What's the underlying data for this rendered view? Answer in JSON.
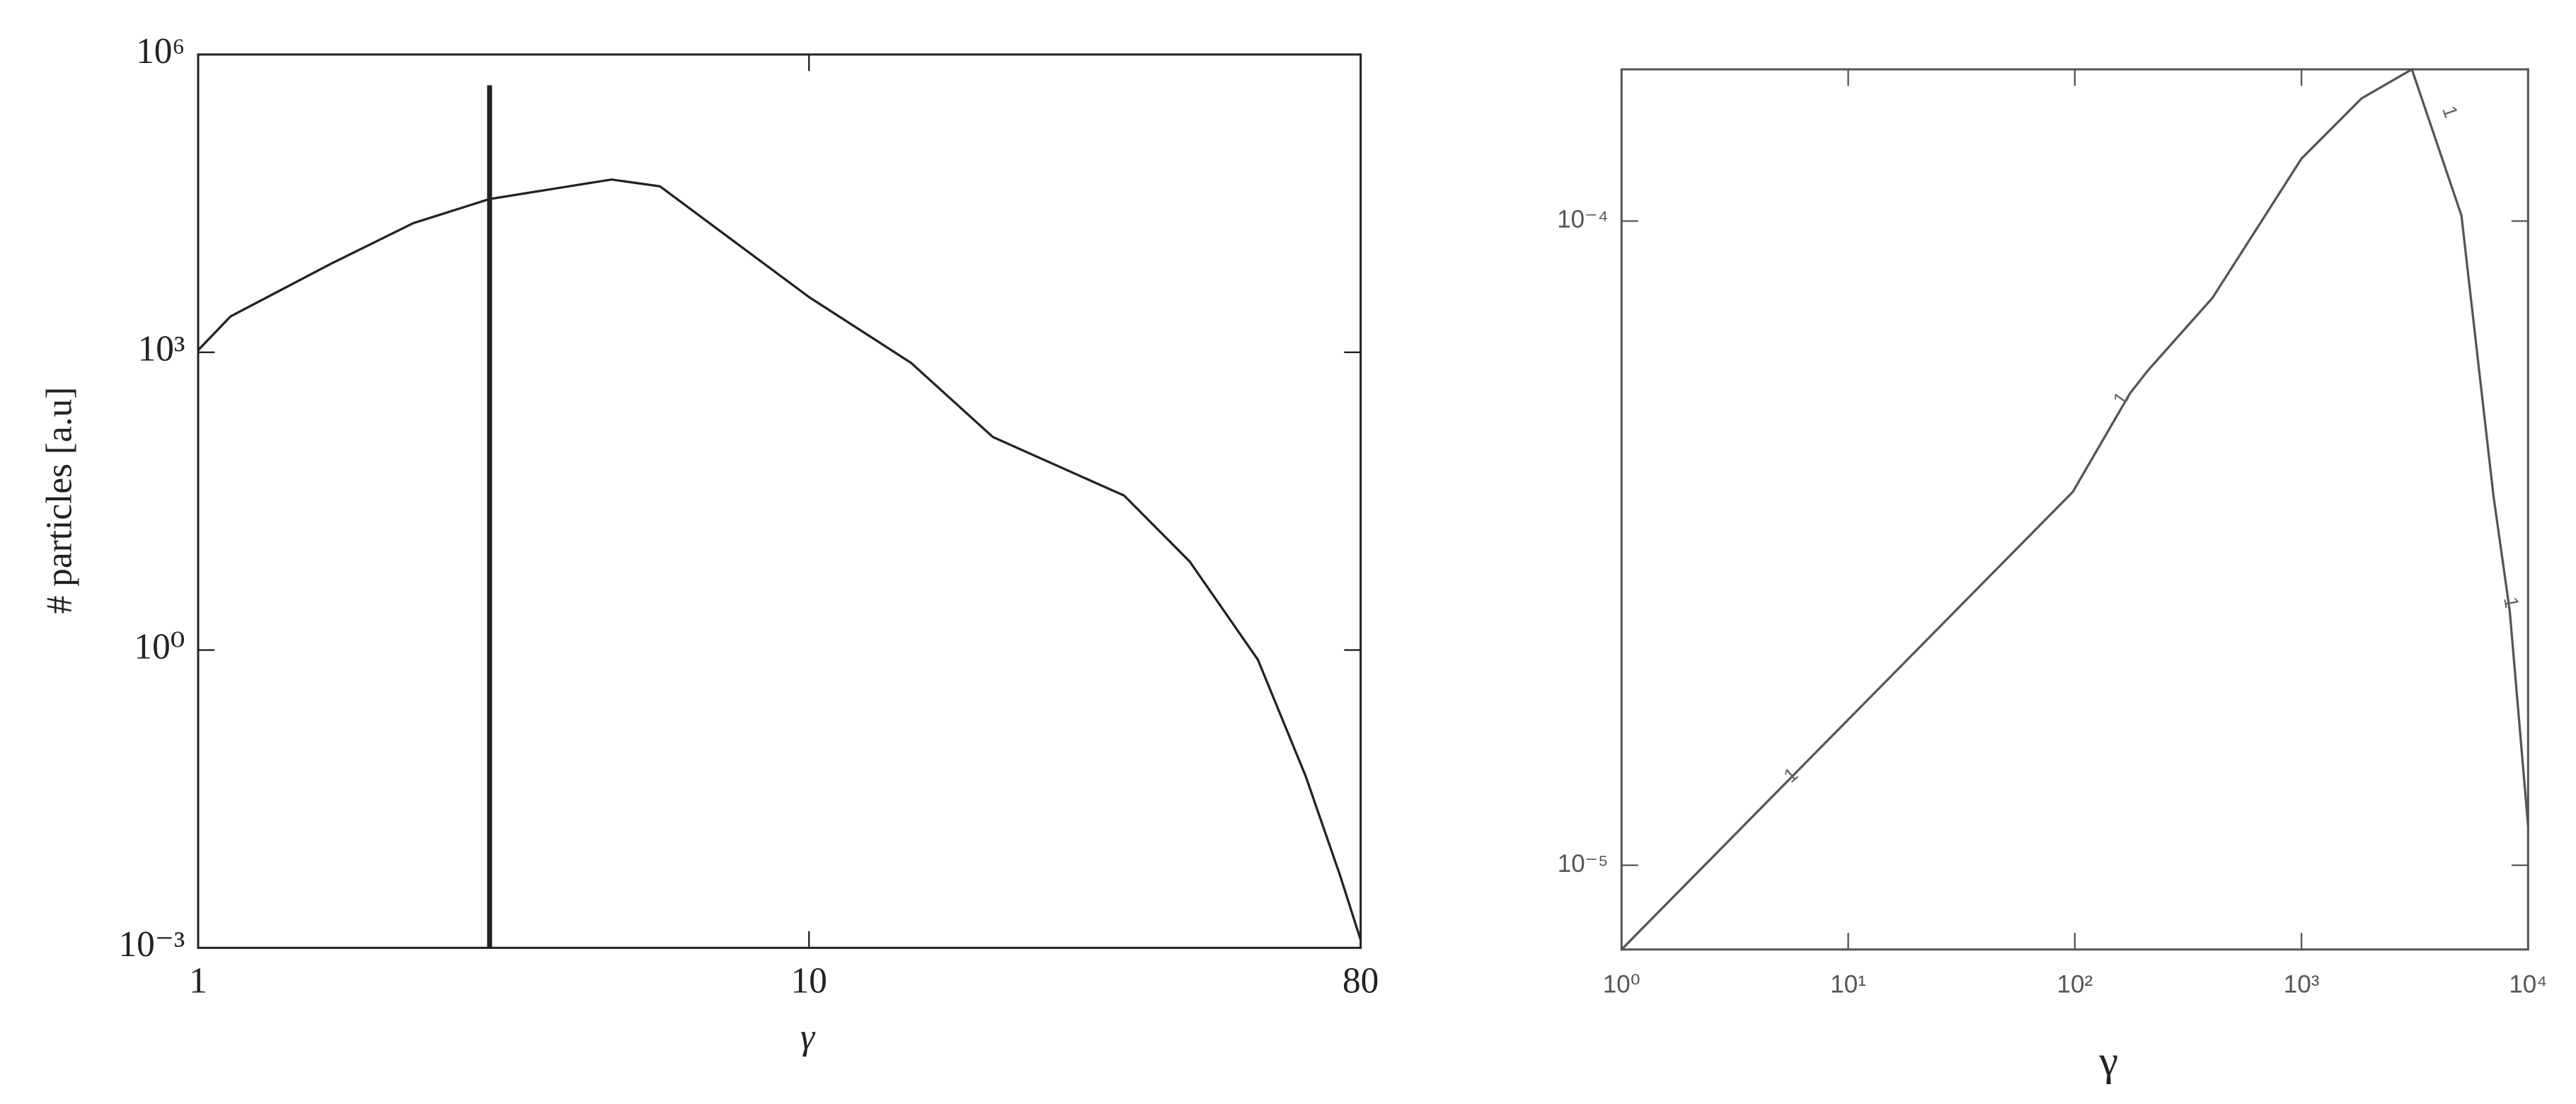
{
  "chart_data": [
    {
      "type": "line",
      "xlabel": "γ",
      "ylabel": "# particles [a.u]",
      "xscale": "log",
      "yscale": "log",
      "xlim": [
        1,
        80
      ],
      "xticks": [
        1,
        10,
        80
      ],
      "ylim": [
        0.001,
        1000000
      ],
      "yticks": [
        {
          "value": 0.001,
          "label": "10⁻³"
        },
        {
          "value": 1,
          "label": "10⁰"
        },
        {
          "value": 1000,
          "label": "10³"
        },
        {
          "value": 1000000,
          "label": "10⁶"
        }
      ],
      "series": [
        {
          "color": "#222222",
          "x": [
            1,
            1.13,
            1.65,
            2.25,
            3.0,
            4.75,
            5.7,
            10,
            14.7,
            20,
            32.8,
            42,
            54.3,
            65,
            74,
            80
          ],
          "values": [
            1050,
            2300,
            7800,
            20000,
            35000,
            55000,
            47000,
            3600,
            780,
            140,
            36,
            7.8,
            0.8,
            0.054,
            0.0054,
            0.0012
          ]
        },
        {
          "color": "#222222",
          "x": [
            3,
            3
          ],
          "values": [
            0.001,
            490000
          ]
        }
      ]
    },
    {
      "type": "line",
      "xlabel": "γ",
      "xscale": "log",
      "yscale": "log",
      "xlim": [
        1,
        10000
      ],
      "xticks": [
        {
          "value": 1,
          "label": "10⁰"
        },
        {
          "value": 10,
          "label": "10¹"
        },
        {
          "value": 100,
          "label": "10²"
        },
        {
          "value": 1000,
          "label": "10³"
        },
        {
          "value": 10000,
          "label": "10⁴"
        }
      ],
      "ylim": [
        7.4e-06,
        0.000172
      ],
      "yticks": [
        {
          "value": 1e-05,
          "label": "10⁻⁵"
        },
        {
          "value": 0.0001,
          "label": "10⁻⁴"
        }
      ],
      "annotations": [
        "1",
        "1",
        "1",
        "1"
      ],
      "series": [
        {
          "color": "#555555",
          "x": [
            1,
            98,
            175,
            209,
            405,
            1000,
            1840,
            3070,
            5080,
            7030,
            8300,
            10000
          ],
          "values": [
            7.4e-06,
            3.8e-05,
            5.4e-05,
            5.85e-05,
            7.6e-05,
            0.000125,
            0.000155,
            0.000172,
            0.000102,
            3.75e-05,
            2.48e-05,
            1.15e-05
          ]
        }
      ]
    }
  ]
}
